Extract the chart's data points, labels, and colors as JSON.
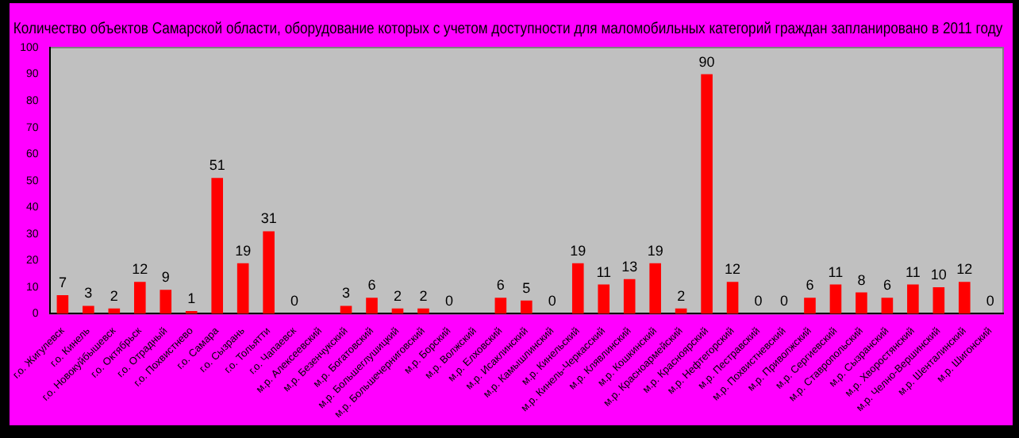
{
  "chart_data": {
    "type": "bar",
    "title": "Количество объектов Самарской области, оборудование которых с учетом доступности для маломобильных категорий граждан запланировано в 2011 году",
    "categories": [
      "г.о. Жигулевск",
      "г.о. Кинель",
      "г.о. Новокуйбышевск",
      "г.о. Октябрьск",
      "г.о. Отрадный",
      "г.о. Похвистнево",
      "г.о. Самара",
      "г.о. Сызрань",
      "г.о. Тольятти",
      "г.о. Чапаевск",
      "м.р. Алексеевский",
      "м.р. Безенчукский",
      "м.р. Богатовский",
      "м.р. Большеглушицкий",
      "м.р. Большечерниговский",
      "м.р. Борский",
      "м.р. Волжский",
      "м.р. Елховский",
      "м.р. Исаклинский",
      "м.р. Камышлинский",
      "м.р. Кинельский",
      "м.р. Кинель-Черкасский",
      "м.р. Клявлинский",
      "м.р. Кошкинский",
      "м.р. Красноармейский",
      "м.р. Красноярский",
      "м.р. Нефтегорский",
      "м.р. Пестравский",
      "м.р. Похвистневский",
      "м.р. Приволжский",
      "м.р. Сергиевский",
      "м.р. Ставропольский",
      "м.р. Сызранский",
      "м.р. Хворостянский",
      "м.р. Челно-Вершинский",
      "м.р. Шенталинский",
      "м.р. Шигонский"
    ],
    "values": [
      7,
      3,
      2,
      12,
      9,
      1,
      51,
      19,
      31,
      0,
      null,
      3,
      6,
      2,
      2,
      0,
      null,
      6,
      5,
      0,
      19,
      11,
      13,
      19,
      2,
      90,
      12,
      0,
      0,
      6,
      11,
      8,
      6,
      11,
      10,
      12,
      0
    ],
    "color": "#ff0000",
    "ylim": [
      0,
      100
    ],
    "yticks": [
      0,
      10,
      20,
      30,
      40,
      50,
      60,
      70,
      80,
      90,
      100
    ],
    "grid": false,
    "data_labels": true
  }
}
